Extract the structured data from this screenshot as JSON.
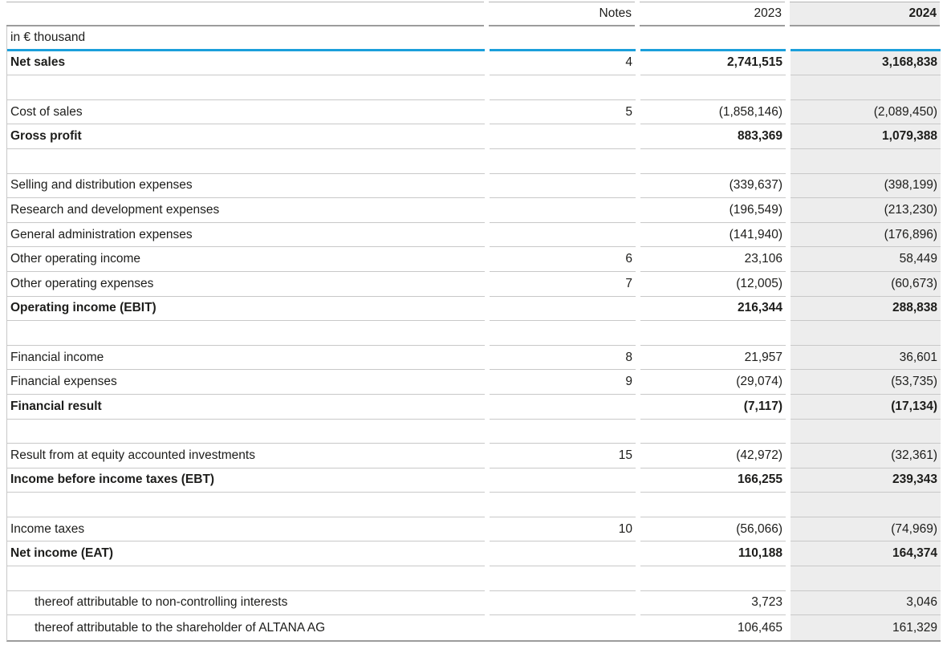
{
  "document": {
    "kind": "consolidated income statement table",
    "unit_label": "in € thousand"
  },
  "colors": {
    "accent_blue": "#1b9fdb",
    "highlight_column_bg": "#ededed",
    "row_separator": "#c8c8c8",
    "header_rule": "#9c9c9c",
    "text": "#1d1d1b"
  },
  "header": {
    "label": "",
    "notes": "Notes",
    "col2023": "2023",
    "col2024": "2024"
  },
  "table": {
    "rows": [
      {
        "type": "data",
        "label": "Net sales",
        "notes": "4",
        "y2023": "2,741,515",
        "y2024": "3,168,838",
        "bold": true
      },
      {
        "type": "spacer"
      },
      {
        "type": "data",
        "label": "Cost of sales",
        "notes": "5",
        "y2023": "(1,858,146)",
        "y2024": "(2,089,450)"
      },
      {
        "type": "data",
        "label": "Gross profit",
        "notes": "",
        "y2023": "883,369",
        "y2024": "1,079,388",
        "bold": true
      },
      {
        "type": "spacer"
      },
      {
        "type": "data",
        "label": "Selling and distribution expenses",
        "notes": "",
        "y2023": "(339,637)",
        "y2024": "(398,199)"
      },
      {
        "type": "data",
        "label": "Research and development expenses",
        "notes": "",
        "y2023": "(196,549)",
        "y2024": "(213,230)"
      },
      {
        "type": "data",
        "label": "General administration expenses",
        "notes": "",
        "y2023": "(141,940)",
        "y2024": "(176,896)"
      },
      {
        "type": "data",
        "label": "Other operating income",
        "notes": "6",
        "y2023": "23,106",
        "y2024": "58,449"
      },
      {
        "type": "data",
        "label": "Other operating expenses",
        "notes": "7",
        "y2023": "(12,005)",
        "y2024": "(60,673)"
      },
      {
        "type": "data",
        "label": "Operating income (EBIT)",
        "notes": "",
        "y2023": "216,344",
        "y2024": "288,838",
        "bold": true
      },
      {
        "type": "spacer"
      },
      {
        "type": "data",
        "label": "Financial income",
        "notes": "8",
        "y2023": "21,957",
        "y2024": "36,601"
      },
      {
        "type": "data",
        "label": "Financial expenses",
        "notes": "9",
        "y2023": "(29,074)",
        "y2024": "(53,735)"
      },
      {
        "type": "data",
        "label": "Financial result",
        "notes": "",
        "y2023": "(7,117)",
        "y2024": "(17,134)",
        "bold": true
      },
      {
        "type": "spacer"
      },
      {
        "type": "data",
        "label": "Result from at equity accounted investments",
        "notes": "15",
        "y2023": "(42,972)",
        "y2024": "(32,361)"
      },
      {
        "type": "data",
        "label": "Income before income taxes (EBT)",
        "notes": "",
        "y2023": "166,255",
        "y2024": "239,343",
        "bold": true
      },
      {
        "type": "spacer"
      },
      {
        "type": "data",
        "label": "Income taxes",
        "notes": "10",
        "y2023": "(56,066)",
        "y2024": "(74,969)"
      },
      {
        "type": "data",
        "label": "Net income (EAT)",
        "notes": "",
        "y2023": "110,188",
        "y2024": "164,374",
        "bold": true
      },
      {
        "type": "spacer"
      },
      {
        "type": "data",
        "label": "thereof attributable to non-controlling interests",
        "notes": "",
        "y2023": "3,723",
        "y2024": "3,046",
        "indent": true
      },
      {
        "type": "data",
        "label": "thereof attributable to the shareholder of ALTANA AG",
        "notes": "",
        "y2023": "106,465",
        "y2024": "161,329",
        "indent": true
      }
    ]
  }
}
